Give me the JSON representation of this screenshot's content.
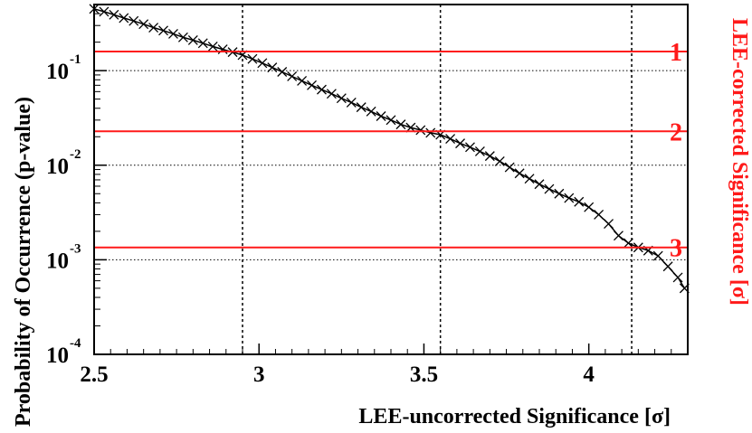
{
  "chart_data": {
    "type": "scatter",
    "xlabel": "LEE-uncorrected Significance [σ]",
    "ylabel": "Probability of Occurrence (p-value)",
    "right_axis_label": "LEE-corrected Significance [σ]",
    "xlim": [
      2.5,
      4.3
    ],
    "ylim": [
      0.0001,
      0.5
    ],
    "y_scale": "log",
    "x_ticks": [
      "2.5",
      "3",
      "3.5",
      "4"
    ],
    "y_ticks": [
      {
        "base": "10",
        "exp": "-1",
        "value": 0.1
      },
      {
        "base": "10",
        "exp": "-2",
        "value": 0.01
      },
      {
        "base": "10",
        "exp": "-3",
        "value": 0.001
      },
      {
        "base": "10",
        "exp": "-4",
        "value": 0.0001
      }
    ],
    "right_ticks": [
      {
        "label": "1",
        "p_value": 0.159
      },
      {
        "label": "2",
        "p_value": 0.0228
      },
      {
        "label": "3",
        "p_value": 0.00135
      }
    ],
    "vertical_lines": [
      2.95,
      3.55,
      4.13
    ],
    "grid": "dotted horizontal at decades, dotted vertical at marked significances",
    "marker": "x",
    "colors": {
      "data": "#000000",
      "corrected": "#ff1a1a"
    },
    "series": [
      {
        "values": [
          [
            2.5,
            0.45
          ],
          [
            2.53,
            0.42
          ],
          [
            2.56,
            0.39
          ],
          [
            2.59,
            0.36
          ],
          [
            2.62,
            0.335
          ],
          [
            2.65,
            0.31
          ],
          [
            2.68,
            0.285
          ],
          [
            2.71,
            0.265
          ],
          [
            2.74,
            0.245
          ],
          [
            2.77,
            0.225
          ],
          [
            2.8,
            0.21
          ],
          [
            2.83,
            0.195
          ],
          [
            2.86,
            0.18
          ],
          [
            2.89,
            0.168
          ],
          [
            2.92,
            0.157
          ],
          [
            2.95,
            0.146
          ],
          [
            2.98,
            0.133
          ],
          [
            3.01,
            0.12
          ],
          [
            3.04,
            0.108
          ],
          [
            3.07,
            0.097
          ],
          [
            3.1,
            0.087
          ],
          [
            3.13,
            0.078
          ],
          [
            3.16,
            0.07
          ],
          [
            3.19,
            0.063
          ],
          [
            3.22,
            0.057
          ],
          [
            3.25,
            0.051
          ],
          [
            3.28,
            0.046
          ],
          [
            3.31,
            0.041
          ],
          [
            3.34,
            0.037
          ],
          [
            3.37,
            0.033
          ],
          [
            3.4,
            0.03
          ],
          [
            3.43,
            0.027
          ],
          [
            3.46,
            0.025
          ],
          [
            3.49,
            0.0235
          ],
          [
            3.52,
            0.022
          ],
          [
            3.55,
            0.021
          ],
          [
            3.58,
            0.019
          ],
          [
            3.61,
            0.017
          ],
          [
            3.64,
            0.0155
          ],
          [
            3.67,
            0.014
          ],
          [
            3.7,
            0.0125
          ],
          [
            3.73,
            0.011
          ],
          [
            3.76,
            0.0095
          ],
          [
            3.79,
            0.0082
          ],
          [
            3.82,
            0.0072
          ],
          [
            3.85,
            0.0063
          ],
          [
            3.88,
            0.0056
          ],
          [
            3.91,
            0.005
          ],
          [
            3.94,
            0.0045
          ],
          [
            3.97,
            0.0041
          ],
          [
            4.0,
            0.0036
          ],
          [
            4.03,
            0.003
          ],
          [
            4.06,
            0.0024
          ],
          [
            4.09,
            0.0018
          ],
          [
            4.12,
            0.0015
          ],
          [
            4.15,
            0.00135
          ],
          [
            4.18,
            0.00125
          ],
          [
            4.21,
            0.0011
          ],
          [
            4.24,
            0.00085
          ],
          [
            4.27,
            0.00065
          ],
          [
            4.29,
            0.0005
          ]
        ]
      }
    ]
  }
}
